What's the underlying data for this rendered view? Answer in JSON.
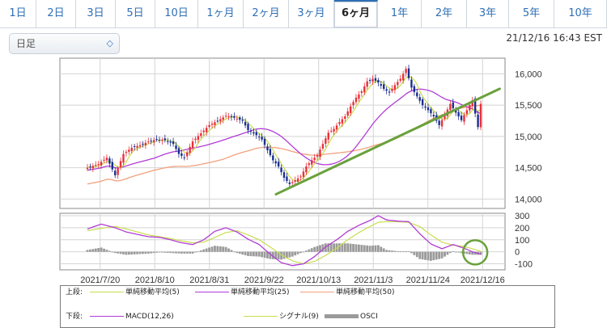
{
  "tabs": [
    {
      "label": "1日",
      "active": false
    },
    {
      "label": "2日",
      "active": false
    },
    {
      "label": "3日",
      "active": false
    },
    {
      "label": "5日",
      "active": false
    },
    {
      "label": "10日",
      "active": false
    },
    {
      "label": "1ヶ月",
      "active": false
    },
    {
      "label": "2ヶ月",
      "active": false
    },
    {
      "label": "3ヶ月",
      "active": false
    },
    {
      "label": "6ヶ月",
      "active": true
    },
    {
      "label": "1年",
      "active": false
    },
    {
      "label": "2年",
      "active": false
    },
    {
      "label": "3年",
      "active": false
    },
    {
      "label": "5年",
      "active": false
    },
    {
      "label": "10年",
      "active": false
    }
  ],
  "period_select": {
    "value": "日足"
  },
  "timestamp": "21/12/16 16:43 EST",
  "colors": {
    "up_candle": "#e8303a",
    "down_candle": "#1b2f8f",
    "ma5": "#c9dc4c",
    "ma25": "#b23cd6",
    "ma50": "#f2a07c",
    "macd": "#b23cd6",
    "signal": "#c9dc4c",
    "osci": "#9a9a9a",
    "trendline": "#6aa13c",
    "annotation_circle": "#6aa13c",
    "tab_text": "#2e6fb5"
  },
  "chart_data": [
    {
      "type": "candlestick",
      "name": "price",
      "x_labels": [
        "2021/7/20",
        "2021/8/10",
        "2021/8/31",
        "2021/9/22",
        "2021/10/13",
        "2021/11/3",
        "2021/11/24",
        "2021/12/16"
      ],
      "y_ticks": [
        "14,000",
        "14,500",
        "15,000",
        "15,500",
        "16,000"
      ],
      "ylim": [
        13850,
        16250
      ],
      "grid": true,
      "close_anchors": [
        [
          0,
          14500
        ],
        [
          4,
          14560
        ],
        [
          7,
          14660
        ],
        [
          10,
          14380
        ],
        [
          13,
          14720
        ],
        [
          16,
          14820
        ],
        [
          19,
          14860
        ],
        [
          22,
          14920
        ],
        [
          25,
          14950
        ],
        [
          28,
          14940
        ],
        [
          31,
          14880
        ],
        [
          33,
          14720
        ],
        [
          35,
          14660
        ],
        [
          38,
          14920
        ],
        [
          41,
          15050
        ],
        [
          44,
          15180
        ],
        [
          47,
          15250
        ],
        [
          50,
          15330
        ],
        [
          53,
          15300
        ],
        [
          56,
          15250
        ],
        [
          58,
          15100
        ],
        [
          61,
          15020
        ],
        [
          63,
          14950
        ],
        [
          65,
          14780
        ],
        [
          67,
          14620
        ],
        [
          69,
          14520
        ],
        [
          71,
          14340
        ],
        [
          73,
          14240
        ],
        [
          75,
          14300
        ],
        [
          77,
          14360
        ],
        [
          79,
          14520
        ],
        [
          81,
          14620
        ],
        [
          83,
          14700
        ],
        [
          85,
          14880
        ],
        [
          87,
          15060
        ],
        [
          89,
          15120
        ],
        [
          91,
          15230
        ],
        [
          93,
          15320
        ],
        [
          95,
          15480
        ],
        [
          97,
          15620
        ],
        [
          99,
          15720
        ],
        [
          101,
          15880
        ],
        [
          103,
          15920
        ],
        [
          105,
          15860
        ],
        [
          107,
          15760
        ],
        [
          109,
          15700
        ],
        [
          111,
          15820
        ],
        [
          113,
          15920
        ],
        [
          115,
          16080
        ],
        [
          117,
          15780
        ],
        [
          119,
          15640
        ],
        [
          121,
          15500
        ],
        [
          123,
          15420
        ],
        [
          125,
          15320
        ],
        [
          127,
          15180
        ],
        [
          129,
          15340
        ],
        [
          131,
          15520
        ],
        [
          133,
          15380
        ],
        [
          135,
          15260
        ],
        [
          137,
          15420
        ],
        [
          139,
          15580
        ],
        [
          141,
          15150
        ],
        [
          142,
          15520
        ]
      ],
      "trendline": [
        [
          14180,
          71
        ],
        [
          15400,
          143
        ]
      ],
      "series": [
        {
          "name": "単純移動平均(5)",
          "kind": "sma",
          "period": 5
        },
        {
          "name": "単純移動平均(25)",
          "kind": "sma",
          "period": 25
        },
        {
          "name": "単純移動平均(50)",
          "kind": "sma",
          "period": 50
        }
      ]
    },
    {
      "type": "macd",
      "name": "indicator",
      "y_ticks": [
        "-100",
        "0",
        "100",
        "200",
        "300"
      ],
      "ylim": [
        -150,
        320
      ],
      "grid": true,
      "macd_anchors": [
        [
          0,
          190
        ],
        [
          5,
          230
        ],
        [
          10,
          200
        ],
        [
          14,
          165
        ],
        [
          18,
          145
        ],
        [
          22,
          125
        ],
        [
          26,
          120
        ],
        [
          30,
          100
        ],
        [
          34,
          75
        ],
        [
          38,
          60
        ],
        [
          42,
          100
        ],
        [
          46,
          170
        ],
        [
          50,
          200
        ],
        [
          54,
          165
        ],
        [
          58,
          105
        ],
        [
          62,
          60
        ],
        [
          66,
          -20
        ],
        [
          70,
          -90
        ],
        [
          74,
          -115
        ],
        [
          78,
          -100
        ],
        [
          82,
          -40
        ],
        [
          86,
          40
        ],
        [
          90,
          100
        ],
        [
          94,
          170
        ],
        [
          98,
          220
        ],
        [
          102,
          260
        ],
        [
          105,
          300
        ],
        [
          108,
          265
        ],
        [
          112,
          255
        ],
        [
          116,
          250
        ],
        [
          120,
          150
        ],
        [
          124,
          65
        ],
        [
          128,
          25
        ],
        [
          132,
          60
        ],
        [
          136,
          30
        ],
        [
          139,
          0
        ],
        [
          142,
          -20
        ]
      ],
      "signal_anchors": [
        [
          0,
          175
        ],
        [
          5,
          195
        ],
        [
          10,
          210
        ],
        [
          14,
          190
        ],
        [
          18,
          165
        ],
        [
          22,
          140
        ],
        [
          26,
          125
        ],
        [
          30,
          110
        ],
        [
          34,
          90
        ],
        [
          38,
          75
        ],
        [
          42,
          80
        ],
        [
          46,
          120
        ],
        [
          50,
          160
        ],
        [
          54,
          175
        ],
        [
          58,
          140
        ],
        [
          62,
          100
        ],
        [
          66,
          40
        ],
        [
          70,
          -25
        ],
        [
          74,
          -75
        ],
        [
          78,
          -100
        ],
        [
          82,
          -80
        ],
        [
          86,
          -30
        ],
        [
          90,
          30
        ],
        [
          94,
          100
        ],
        [
          98,
          160
        ],
        [
          102,
          210
        ],
        [
          105,
          245
        ],
        [
          108,
          250
        ],
        [
          112,
          250
        ],
        [
          116,
          245
        ],
        [
          120,
          210
        ],
        [
          124,
          140
        ],
        [
          128,
          80
        ],
        [
          132,
          55
        ],
        [
          136,
          45
        ],
        [
          139,
          25
        ],
        [
          142,
          5
        ]
      ],
      "series": [
        {
          "name": "MACD(12,26)",
          "kind": "line"
        },
        {
          "name": "シグナル(9)",
          "kind": "line"
        },
        {
          "name": "OSCI",
          "kind": "histogram"
        }
      ]
    }
  ],
  "legend": {
    "upper_label": "上段:",
    "lower_label": "下段:",
    "upper_items": [
      "単純移動平均(5)",
      "単純移動平均(25)",
      "単純移動平均(50)"
    ],
    "lower_items": [
      "MACD(12,26)",
      "シグナル(9)",
      "OSCI"
    ]
  }
}
